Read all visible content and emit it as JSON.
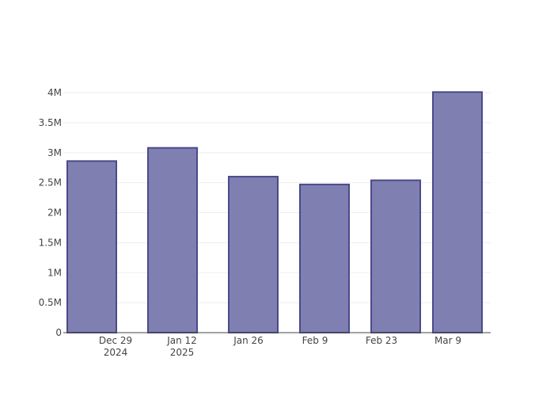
{
  "chart_data": {
    "type": "bar",
    "x": [
      "2024-12-24",
      "2025-01-10",
      "2025-01-27",
      "2025-02-11",
      "2025-02-26",
      "2025-03-11"
    ],
    "values": [
      2860000,
      3080000,
      2600000,
      2470000,
      2540000,
      4010000
    ],
    "color": "#7f7fb1",
    "xlim": [
      "2024-12-18",
      "2025-03-18"
    ],
    "xticks": [
      {
        "value": "2024-12-29",
        "label": "Dec 29\n2024"
      },
      {
        "value": "2025-01-12",
        "label": "Jan 12\n2025"
      },
      {
        "value": "2025-01-26",
        "label": "Jan 26"
      },
      {
        "value": "2025-02-09",
        "label": "Feb 9"
      },
      {
        "value": "2025-02-23",
        "label": "Feb 23"
      },
      {
        "value": "2025-03-09",
        "label": "Mar 9"
      }
    ],
    "ylim": [
      0,
      4000000
    ],
    "yticks": [
      0,
      {
        "value": 500000,
        "label": "0.5M"
      },
      {
        "value": 1000000,
        "label": "1M"
      },
      {
        "value": 1500000,
        "label": "1.5M"
      },
      {
        "value": 2000000,
        "label": "2M"
      },
      {
        "value": 2500000,
        "label": "2.5M"
      },
      {
        "value": 3000000,
        "label": "3M"
      },
      {
        "value": 3500000,
        "label": "3.5M"
      },
      {
        "value": 4000000,
        "label": "4M"
      }
    ],
    "grid": true
  }
}
